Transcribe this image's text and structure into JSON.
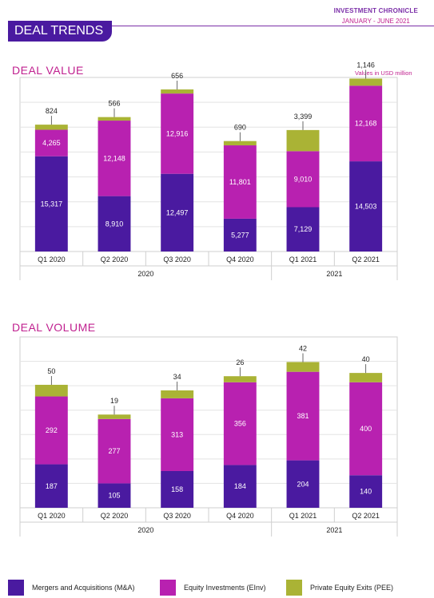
{
  "header": {
    "publication": "INVESTMENT CHRONICLE",
    "period": "JANUARY - JUNE  2021",
    "banner": "DEAL TRENDS"
  },
  "colors": {
    "ma": "#4a1aa0",
    "einv": "#b821b0",
    "pee": "#aab335",
    "title": "#c0208f",
    "banner": "#4a1aa0"
  },
  "legend": [
    {
      "label": "Mergers and Acquisitions (M&A)",
      "color": "#4a1aa0"
    },
    {
      "label": "Equity Investments (EInv)",
      "color": "#b821b0"
    },
    {
      "label": "Private Equity Exits (PEE)",
      "color": "#aab335"
    }
  ],
  "chart_data": [
    {
      "type": "bar",
      "stacked": true,
      "title": "DEAL VALUE",
      "unit_note": "Values in USD million",
      "categories": [
        "Q1 2020",
        "Q2 2020",
        "Q3 2020",
        "Q4 2020",
        "Q1 2021",
        "Q2 2021"
      ],
      "groups": [
        {
          "label": "2020",
          "span": 4
        },
        {
          "label": "2021",
          "span": 2
        }
      ],
      "series": [
        {
          "name": "Mergers and Acquisitions (M&A)",
          "values": [
            15317,
            8910,
            12497,
            5277,
            7129,
            14503
          ]
        },
        {
          "name": "Equity Investments (EInv)",
          "values": [
            4265,
            12148,
            12916,
            11801,
            9010,
            12168
          ]
        },
        {
          "name": "Private Equity Exits (PEE)",
          "values": [
            824,
            566,
            656,
            690,
            3399,
            1146
          ]
        }
      ],
      "labels": [
        [
          "15,317",
          "8,910",
          "12,497",
          "5,277",
          "7,129",
          "14,503"
        ],
        [
          "4,265",
          "12,148",
          "12,916",
          "11,801",
          "9,010",
          "12,168"
        ],
        [
          "824",
          "566",
          "656",
          "690",
          "3,399",
          "1,146"
        ]
      ],
      "ylim": [
        0,
        28000
      ],
      "grid": true
    },
    {
      "type": "bar",
      "stacked": true,
      "title": "DEAL VOLUME",
      "categories": [
        "Q1 2020",
        "Q2 2020",
        "Q3 2020",
        "Q4 2020",
        "Q1 2021",
        "Q2 2021"
      ],
      "groups": [
        {
          "label": "2020",
          "span": 4
        },
        {
          "label": "2021",
          "span": 2
        }
      ],
      "series": [
        {
          "name": "Mergers and Acquisitions (M&A)",
          "values": [
            187,
            105,
            158,
            184,
            204,
            140
          ]
        },
        {
          "name": "Equity Investments (EInv)",
          "values": [
            292,
            277,
            313,
            356,
            381,
            400
          ]
        },
        {
          "name": "Private Equity Exits (PEE)",
          "values": [
            50,
            19,
            34,
            26,
            42,
            40
          ]
        }
      ],
      "labels": [
        [
          "187",
          "105",
          "158",
          "184",
          "204",
          "140"
        ],
        [
          "292",
          "277",
          "313",
          "356",
          "381",
          "400"
        ],
        [
          "50",
          "19",
          "34",
          "26",
          "42",
          "40"
        ]
      ],
      "ylim": [
        0,
        735
      ],
      "grid": true
    }
  ]
}
